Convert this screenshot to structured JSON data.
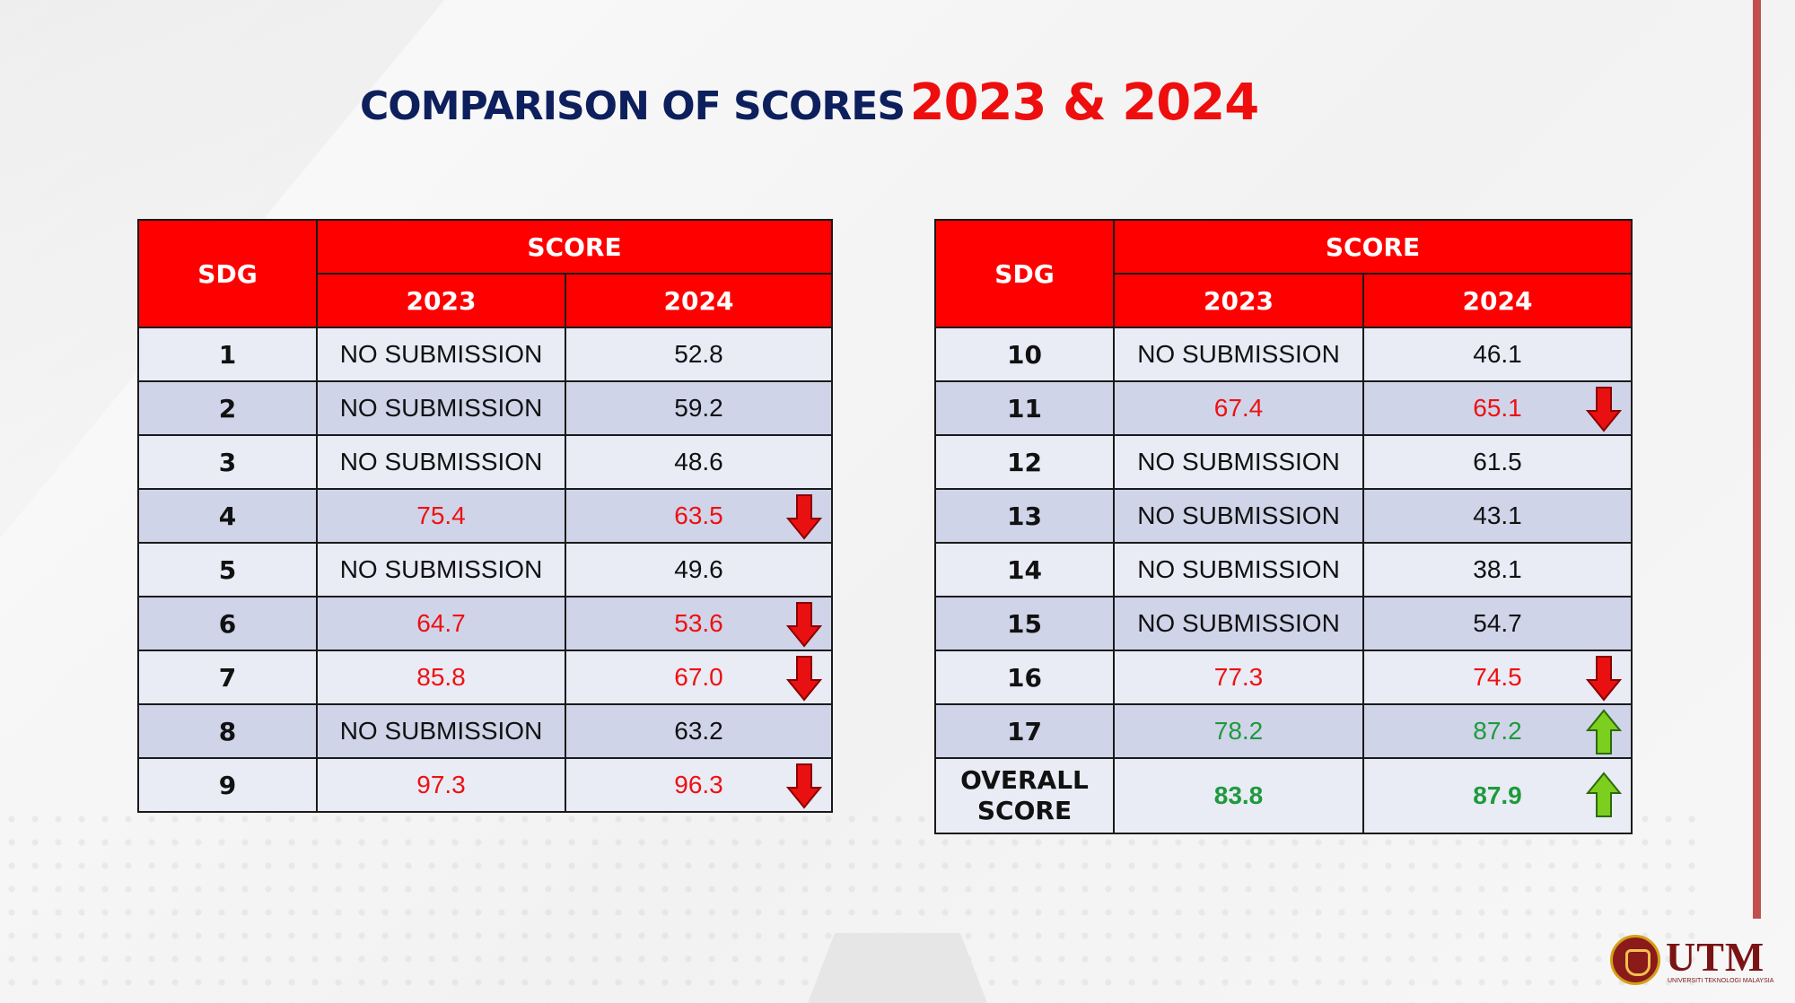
{
  "title": {
    "part1": "COMPARISON OF SCORES",
    "part2": "2023 & 2024"
  },
  "colors": {
    "header_red": "#ff0000",
    "title_navy": "#0d1f5c",
    "down": "#ee1111",
    "up": "#1e9a3c",
    "row_light": "#e9ebf5",
    "row_dark": "#cfd4e9"
  },
  "headers": {
    "sdg": "SDG",
    "score": "SCORE",
    "y2023": "2023",
    "y2024": "2024"
  },
  "left_rows": [
    {
      "sdg": "1",
      "s2023": "NO SUBMISSION",
      "s2024": "52.8",
      "trend": "none"
    },
    {
      "sdg": "2",
      "s2023": "NO SUBMISSION",
      "s2024": "59.2",
      "trend": "none"
    },
    {
      "sdg": "3",
      "s2023": "NO SUBMISSION",
      "s2024": "48.6",
      "trend": "none"
    },
    {
      "sdg": "4",
      "s2023": "75.4",
      "s2024": "63.5",
      "trend": "down"
    },
    {
      "sdg": "5",
      "s2023": "NO SUBMISSION",
      "s2024": "49.6",
      "trend": "none"
    },
    {
      "sdg": "6",
      "s2023": "64.7",
      "s2024": "53.6",
      "trend": "down"
    },
    {
      "sdg": "7",
      "s2023": "85.8",
      "s2024": "67.0",
      "trend": "down"
    },
    {
      "sdg": "8",
      "s2023": "NO SUBMISSION",
      "s2024": "63.2",
      "trend": "none"
    },
    {
      "sdg": "9",
      "s2023": "97.3",
      "s2024": "96.3",
      "trend": "down"
    }
  ],
  "right_rows": [
    {
      "sdg": "10",
      "s2023": "NO SUBMISSION",
      "s2024": "46.1",
      "trend": "none"
    },
    {
      "sdg": "11",
      "s2023": "67.4",
      "s2024": "65.1",
      "trend": "down"
    },
    {
      "sdg": "12",
      "s2023": "NO SUBMISSION",
      "s2024": "61.5",
      "trend": "none"
    },
    {
      "sdg": "13",
      "s2023": "NO SUBMISSION",
      "s2024": "43.1",
      "trend": "none"
    },
    {
      "sdg": "14",
      "s2023": "NO SUBMISSION",
      "s2024": "38.1",
      "trend": "none"
    },
    {
      "sdg": "15",
      "s2023": "NO SUBMISSION",
      "s2024": "54.7",
      "trend": "none"
    },
    {
      "sdg": "16",
      "s2023": "77.3",
      "s2024": "74.5",
      "trend": "down"
    },
    {
      "sdg": "17",
      "s2023": "78.2",
      "s2024": "87.2",
      "trend": "up"
    }
  ],
  "overall": {
    "label_line1": "OVERALL",
    "label_line2": "SCORE",
    "s2023": "83.8",
    "s2024": "87.9",
    "trend": "up"
  },
  "logo": {
    "wordmark": "UTM",
    "subtitle": "UNIVERSITI TEKNOLOGI MALAYSIA"
  }
}
